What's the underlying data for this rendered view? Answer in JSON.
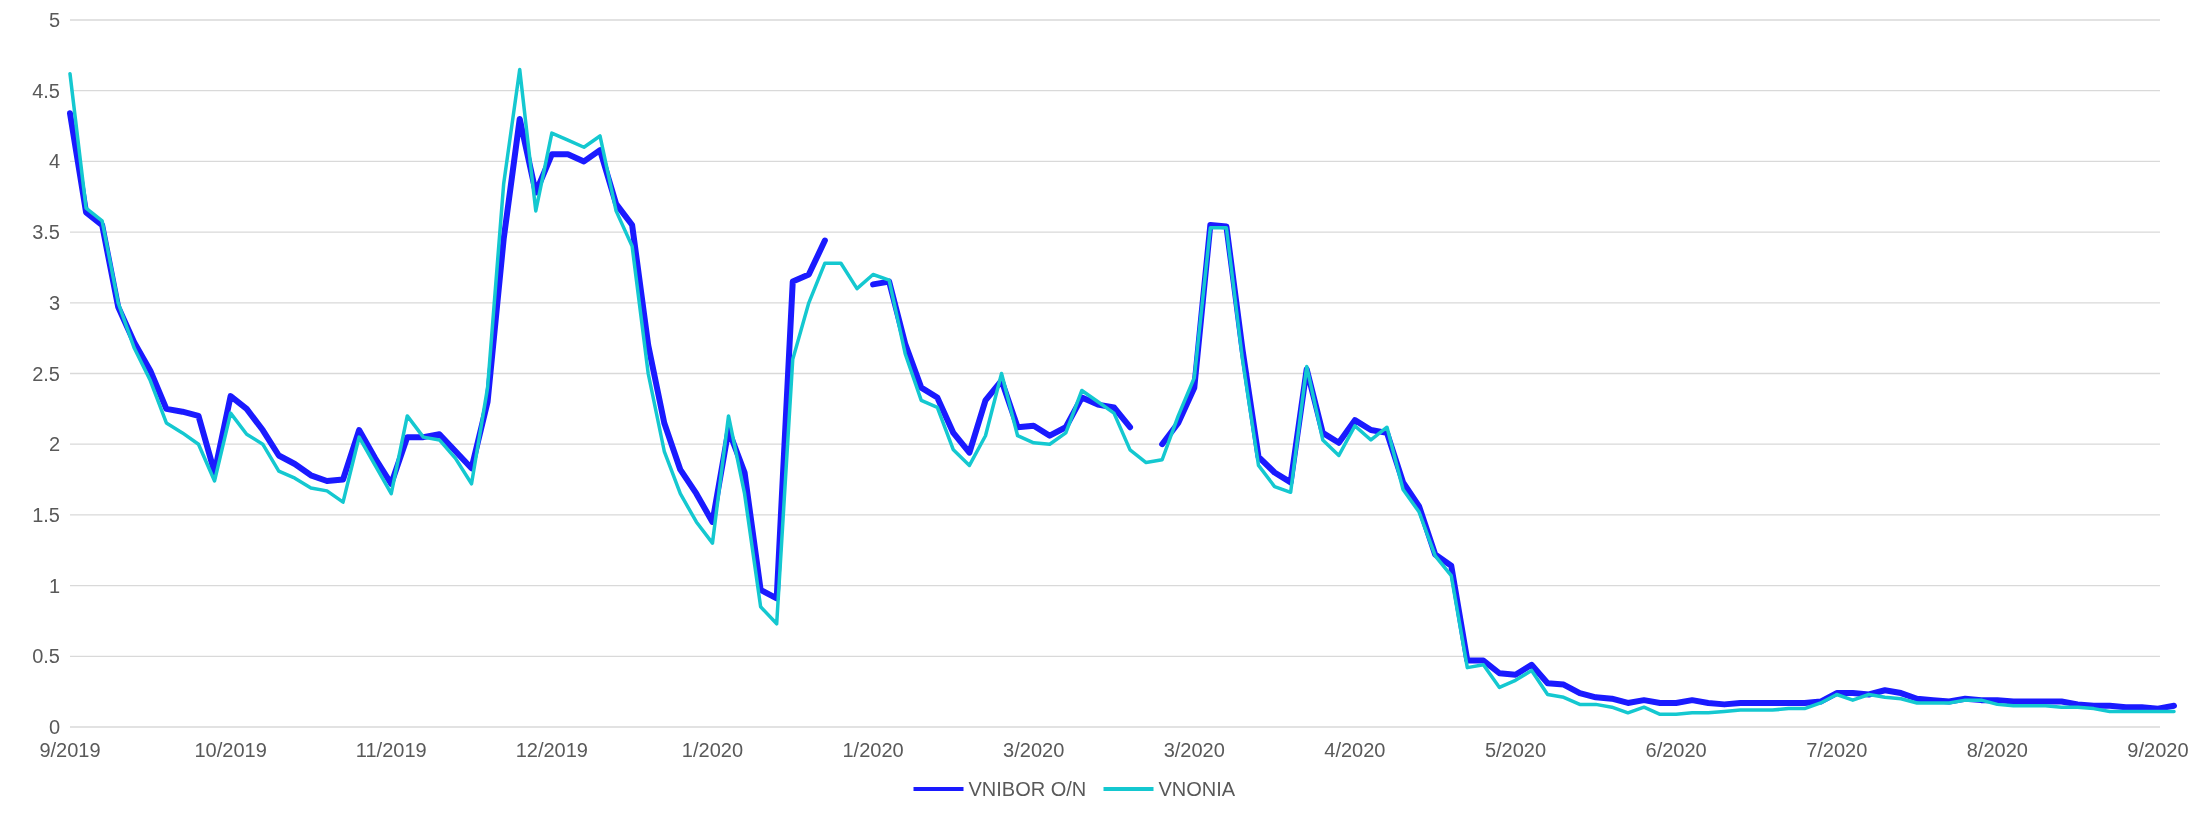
{
  "chart_data": {
    "type": "line",
    "categories": [
      "9/2019",
      null,
      null,
      null,
      null,
      null,
      null,
      null,
      null,
      null,
      "10/2019",
      null,
      null,
      null,
      null,
      null,
      null,
      null,
      null,
      null,
      "11/2019",
      null,
      null,
      null,
      null,
      null,
      null,
      null,
      null,
      null,
      "12/2019",
      null,
      null,
      null,
      null,
      null,
      null,
      null,
      null,
      null,
      "1/2020",
      null,
      null,
      null,
      null,
      null,
      null,
      null,
      null,
      null,
      "1/2020",
      null,
      null,
      null,
      null,
      null,
      null,
      null,
      null,
      null,
      "3/2020",
      null,
      null,
      null,
      null,
      null,
      null,
      null,
      null,
      null,
      "3/2020",
      null,
      null,
      null,
      null,
      null,
      null,
      null,
      null,
      null,
      "4/2020",
      null,
      null,
      null,
      null,
      null,
      null,
      null,
      null,
      null,
      "5/2020",
      null,
      null,
      null,
      null,
      null,
      null,
      null,
      null,
      null,
      "6/2020",
      null,
      null,
      null,
      null,
      null,
      null,
      null,
      null,
      null,
      "7/2020",
      null,
      null,
      null,
      null,
      null,
      null,
      null,
      null,
      null,
      "8/2020",
      null,
      null,
      null,
      null,
      null,
      null,
      null,
      null,
      null,
      "9/2020",
      null
    ],
    "series": [
      {
        "name": "VNIBOR O/N",
        "color": "#1a1aff",
        "values": [
          4.34,
          3.64,
          3.55,
          2.97,
          2.72,
          2.52,
          2.25,
          2.23,
          2.2,
          1.8,
          2.34,
          2.25,
          2.1,
          1.92,
          1.86,
          1.78,
          1.74,
          1.75,
          2.1,
          1.9,
          1.72,
          2.05,
          2.05,
          2.07,
          1.95,
          1.83,
          2.3,
          3.45,
          4.3,
          3.78,
          4.05,
          4.05,
          4.0,
          4.08,
          3.7,
          3.55,
          2.7,
          2.15,
          1.82,
          1.65,
          1.45,
          2.1,
          1.8,
          0.97,
          0.91,
          3.15,
          3.2,
          3.44,
          null,
          null,
          3.13,
          3.15,
          2.71,
          2.4,
          2.33,
          2.08,
          1.94,
          2.31,
          2.45,
          2.12,
          2.13,
          2.06,
          2.12,
          2.33,
          2.28,
          2.26,
          2.12,
          null,
          2.0,
          2.15,
          2.4,
          3.55,
          3.54,
          2.67,
          1.91,
          1.8,
          1.73,
          2.53,
          2.08,
          2.01,
          2.17,
          2.1,
          2.08,
          1.73,
          1.56,
          1.22,
          1.14,
          0.47,
          0.47,
          0.38,
          0.37,
          0.44,
          0.31,
          0.3,
          0.24,
          0.21,
          0.2,
          0.17,
          0.19,
          0.17,
          0.17,
          0.19,
          0.17,
          0.16,
          0.17,
          0.17,
          0.17,
          0.17,
          0.17,
          0.18,
          0.24,
          0.24,
          0.23,
          0.26,
          0.24,
          0.2,
          0.19,
          0.18,
          0.2,
          0.19,
          0.19,
          0.18,
          0.18,
          0.18,
          0.18,
          0.16,
          0.15,
          0.15,
          0.14,
          0.14,
          0.13,
          0.15
        ]
      },
      {
        "name": "VNONIA",
        "color": "#14c8d0",
        "values": [
          4.62,
          3.67,
          3.58,
          3.0,
          2.68,
          2.45,
          2.15,
          2.08,
          2.0,
          1.74,
          2.22,
          2.07,
          2.0,
          1.81,
          1.76,
          1.69,
          1.67,
          1.59,
          2.05,
          1.85,
          1.65,
          2.2,
          2.05,
          2.03,
          1.9,
          1.72,
          2.4,
          3.84,
          4.65,
          3.65,
          4.2,
          4.15,
          4.1,
          4.18,
          3.65,
          3.4,
          2.5,
          1.95,
          1.65,
          1.45,
          1.3,
          2.2,
          1.65,
          0.85,
          0.73,
          2.6,
          3.0,
          3.28,
          3.28,
          3.1,
          3.2,
          3.16,
          2.64,
          2.31,
          2.26,
          1.96,
          1.85,
          2.06,
          2.5,
          2.06,
          2.01,
          2.0,
          2.08,
          2.38,
          2.3,
          2.22,
          1.96,
          1.87,
          1.89,
          2.2,
          2.47,
          3.53,
          3.53,
          2.6,
          1.85,
          1.7,
          1.66,
          2.55,
          2.03,
          1.92,
          2.13,
          2.03,
          2.12,
          1.68,
          1.52,
          1.21,
          1.07,
          0.42,
          0.44,
          0.28,
          0.33,
          0.4,
          0.23,
          0.21,
          0.16,
          0.16,
          0.14,
          0.1,
          0.14,
          0.09,
          0.09,
          0.1,
          0.1,
          0.11,
          0.12,
          0.12,
          0.12,
          0.13,
          0.13,
          0.17,
          0.23,
          0.19,
          0.23,
          0.21,
          0.2,
          0.17,
          0.17,
          0.17,
          0.19,
          0.19,
          0.16,
          0.15,
          0.15,
          0.15,
          0.14,
          0.14,
          0.13,
          0.11,
          0.11,
          0.11,
          0.11,
          0.11
        ]
      }
    ],
    "ylim": [
      0,
      5
    ],
    "yticks": [
      0,
      0.5,
      1,
      1.5,
      2,
      2.5,
      3,
      3.5,
      4,
      4.5,
      5
    ],
    "grid": "y",
    "legend": "bottom",
    "line_style": "solid",
    "marker": "none"
  }
}
